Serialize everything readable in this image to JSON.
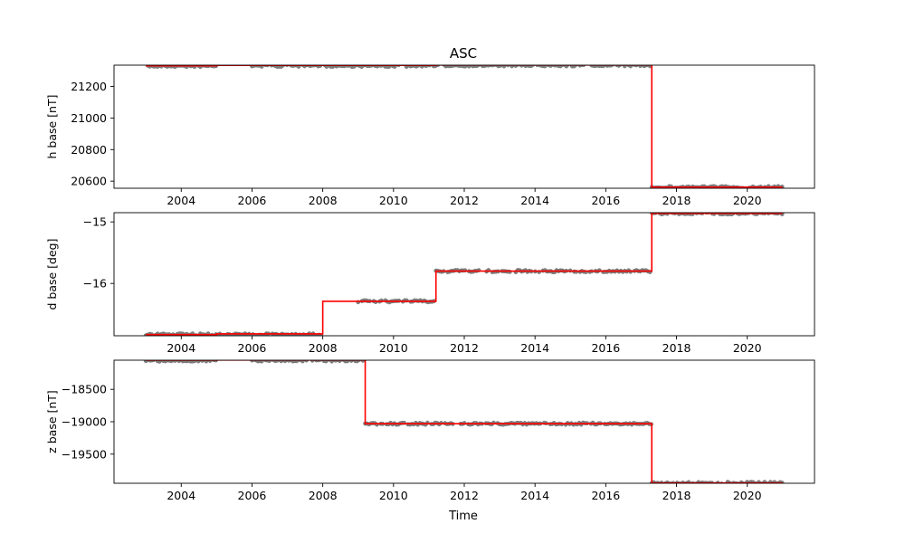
{
  "chart_data": {
    "type": "scatter",
    "title": "ASC",
    "xlabel": "Time",
    "x_unit": "year",
    "xlim": [
      2002.1,
      2021.9
    ],
    "x_ticks": [
      2004,
      2006,
      2008,
      2010,
      2012,
      2014,
      2016,
      2018,
      2020
    ],
    "x_tick_labels": [
      "2004",
      "2006",
      "2008",
      "2010",
      "2012",
      "2014",
      "2016",
      "2018",
      "2020"
    ],
    "colors": {
      "points": "#808080",
      "fit": "#ff0000",
      "axes": "#000000"
    },
    "panels": [
      {
        "ylabel": "h base [nT]",
        "ylim": [
          20555,
          21335
        ],
        "y_ticks": [
          20600,
          20800,
          21000,
          21200
        ],
        "y_tick_labels": [
          "20600",
          "20800",
          "21000",
          "21200"
        ],
        "points": [
          {
            "x_range": [
              2003.0,
              2005.0
            ],
            "y": 21330
          },
          {
            "x_range": [
              2006.0,
              2008.0
            ],
            "y": 21331
          },
          {
            "x_range": [
              2008.0,
              2011.2
            ],
            "y": 21331
          },
          {
            "x_range": [
              2011.2,
              2017.3
            ],
            "y": 21334
          },
          {
            "x_range": [
              2017.3,
              2021.0
            ],
            "y": 20562
          }
        ],
        "fit": [
          {
            "x": [
              2003.0,
              2005.0
            ],
            "y": 21331
          },
          {
            "x": [
              2005.0,
              2008.0
            ],
            "y": 21334
          },
          {
            "x": [
              2008.0,
              2011.2
            ],
            "y": 21334
          },
          {
            "x": [
              2011.2,
              2017.3
            ],
            "y": 21336
          },
          {
            "x": [
              2017.3,
              2021.0
            ],
            "y": 20562
          }
        ]
      },
      {
        "ylabel": "d base [deg]",
        "ylim": [
          -16.85,
          -14.85
        ],
        "y_ticks": [
          -16,
          -15
        ],
        "y_tick_labels": [
          "−16",
          "−15"
        ],
        "points": [
          {
            "x_range": [
              2003.0,
              2008.0
            ],
            "y": -16.83
          },
          {
            "x_range": [
              2009.0,
              2011.2
            ],
            "y": -16.29
          },
          {
            "x_range": [
              2011.2,
              2017.3
            ],
            "y": -15.8
          },
          {
            "x_range": [
              2017.3,
              2021.0
            ],
            "y": -14.86
          }
        ],
        "fit": [
          {
            "x": [
              2003.0,
              2005.0
            ],
            "y": -16.83
          },
          {
            "x": [
              2005.0,
              2008.0
            ],
            "y": -16.82
          },
          {
            "x": [
              2008.0,
              2011.2
            ],
            "y": -16.29
          },
          {
            "x": [
              2011.2,
              2017.3
            ],
            "y": -15.8
          },
          {
            "x": [
              2017.3,
              2021.0
            ],
            "y": -14.86
          }
        ]
      },
      {
        "ylabel": "z base [nT]",
        "ylim": [
          -19950,
          -18050
        ],
        "y_ticks": [
          -18500,
          -19000,
          -19500
        ],
        "y_tick_labels": [
          "−18500",
          "−19000",
          "−19500"
        ],
        "points": [
          {
            "x_range": [
              2003.0,
              2005.0
            ],
            "y": -18055
          },
          {
            "x_range": [
              2006.0,
              2009.2
            ],
            "y": -18052
          },
          {
            "x_range": [
              2009.2,
              2017.3
            ],
            "y": -19030
          },
          {
            "x_range": [
              2017.3,
              2021.0
            ],
            "y": -19945
          }
        ],
        "fit": [
          {
            "x": [
              2003.0,
              2005.0
            ],
            "y": -18049
          },
          {
            "x": [
              2005.0,
              2009.2
            ],
            "y": -18048
          },
          {
            "x": [
              2009.2,
              2017.3
            ],
            "y": -19030
          },
          {
            "x": [
              2017.3,
              2021.0
            ],
            "y": -19945
          }
        ]
      }
    ]
  }
}
